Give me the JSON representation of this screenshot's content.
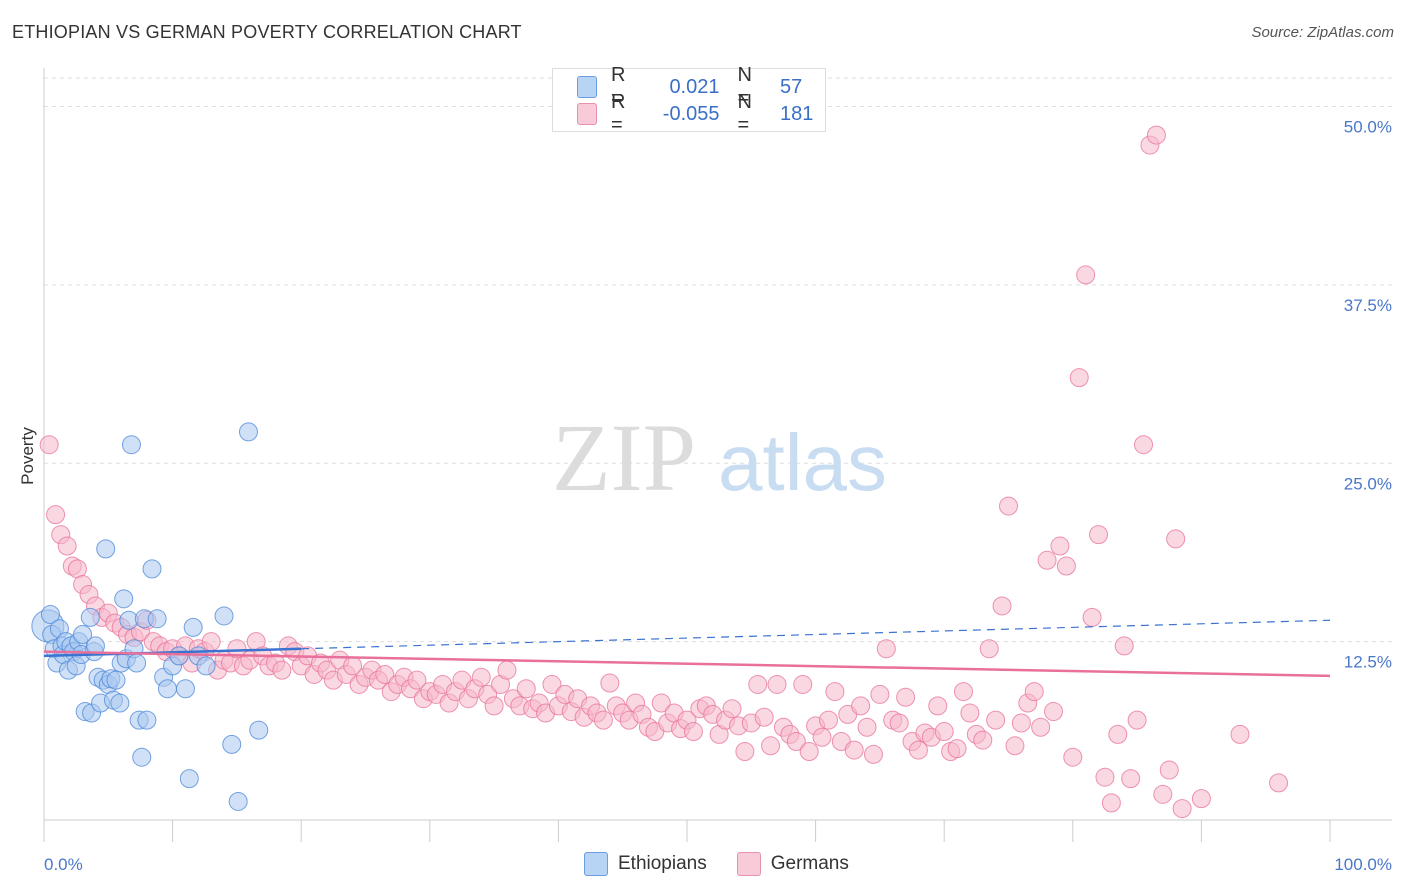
{
  "header": {
    "title": "ETHIOPIAN VS GERMAN POVERTY CORRELATION CHART",
    "source": "Source: ZipAtlas.com"
  },
  "legend": {
    "rows": [
      {
        "r_label": "R =",
        "r_value": "0.021",
        "n_label": "N =",
        "n_value": "57",
        "color": "#a9c8f0"
      },
      {
        "r_label": "R =",
        "r_value": "-0.055",
        "n_label": "N =",
        "n_value": "181",
        "color": "#f5b8cb"
      }
    ]
  },
  "bottom_legend": {
    "items": [
      {
        "label": "Ethiopians",
        "color": "#a9c8f0"
      },
      {
        "label": "Germans",
        "color": "#f5b8cb"
      }
    ]
  },
  "watermark": {
    "zip": "ZIP",
    "atlas": "atlas"
  },
  "chart_data": {
    "type": "scatter",
    "title": "ETHIOPIAN VS GERMAN POVERTY CORRELATION CHART",
    "xlabel": "",
    "ylabel": "Poverty",
    "xlim": [
      0,
      100
    ],
    "ylim": [
      0,
      52
    ],
    "x_tick_labels": [
      "0.0%",
      "100.0%"
    ],
    "y_ticks": [
      12.5,
      25.0,
      37.5,
      50.0
    ],
    "y_tick_labels": [
      "12.5%",
      "25.0%",
      "37.5%",
      "50.0%"
    ],
    "grid": true,
    "legend_position": "top-center",
    "series": [
      {
        "name": "Ethiopians",
        "color": "#4a86d8",
        "fill": "#a9c8f0",
        "trend": {
          "x": [
            0,
            100
          ],
          "y": [
            11.5,
            14.0
          ],
          "solid_until": 20
        },
        "points": [
          [
            0.3,
            13.6
          ],
          [
            0.5,
            14.4
          ],
          [
            0.6,
            13.0
          ],
          [
            0.8,
            12.0
          ],
          [
            1.0,
            11.0
          ],
          [
            1.2,
            13.4
          ],
          [
            1.4,
            12.2
          ],
          [
            1.5,
            11.6
          ],
          [
            1.7,
            12.5
          ],
          [
            1.9,
            10.5
          ],
          [
            2.1,
            12.2
          ],
          [
            2.3,
            11.8
          ],
          [
            2.5,
            10.8
          ],
          [
            2.7,
            12.5
          ],
          [
            2.9,
            11.6
          ],
          [
            3.0,
            13.0
          ],
          [
            3.2,
            7.6
          ],
          [
            3.6,
            14.2
          ],
          [
            3.7,
            7.5
          ],
          [
            3.9,
            11.8
          ],
          [
            4.0,
            12.2
          ],
          [
            4.2,
            10.0
          ],
          [
            4.4,
            8.2
          ],
          [
            4.6,
            9.8
          ],
          [
            4.8,
            19.0
          ],
          [
            5.0,
            9.5
          ],
          [
            5.2,
            9.9
          ],
          [
            5.4,
            8.4
          ],
          [
            5.6,
            9.8
          ],
          [
            5.9,
            8.2
          ],
          [
            6.0,
            11.0
          ],
          [
            6.2,
            15.5
          ],
          [
            6.4,
            11.3
          ],
          [
            6.6,
            14.0
          ],
          [
            6.8,
            26.3
          ],
          [
            7.0,
            12.0
          ],
          [
            7.2,
            11.0
          ],
          [
            7.4,
            7.0
          ],
          [
            7.6,
            4.4
          ],
          [
            7.8,
            14.1
          ],
          [
            8.0,
            7.0
          ],
          [
            8.4,
            17.6
          ],
          [
            8.8,
            14.1
          ],
          [
            9.3,
            10.0
          ],
          [
            9.6,
            9.2
          ],
          [
            10.0,
            10.8
          ],
          [
            10.5,
            11.5
          ],
          [
            11.0,
            9.2
          ],
          [
            11.3,
            2.9
          ],
          [
            11.6,
            13.5
          ],
          [
            12.0,
            11.5
          ],
          [
            12.6,
            10.8
          ],
          [
            14.0,
            14.3
          ],
          [
            14.6,
            5.3
          ],
          [
            15.1,
            1.3
          ],
          [
            15.9,
            27.2
          ],
          [
            16.7,
            6.3
          ]
        ]
      },
      {
        "name": "Germans",
        "color": "#e8709a",
        "fill": "#f5b8cb",
        "trend": {
          "x": [
            0,
            100
          ],
          "y": [
            11.8,
            10.1
          ]
        },
        "points": [
          [
            0.4,
            26.3
          ],
          [
            0.9,
            21.4
          ],
          [
            1.3,
            20.0
          ],
          [
            1.8,
            19.2
          ],
          [
            2.2,
            17.8
          ],
          [
            2.6,
            17.6
          ],
          [
            3.0,
            16.5
          ],
          [
            3.5,
            15.8
          ],
          [
            4.0,
            15.0
          ],
          [
            4.5,
            14.2
          ],
          [
            5.0,
            14.5
          ],
          [
            5.5,
            13.8
          ],
          [
            6.0,
            13.5
          ],
          [
            6.5,
            13.0
          ],
          [
            7.0,
            12.8
          ],
          [
            7.5,
            13.2
          ],
          [
            8.0,
            14.0
          ],
          [
            8.5,
            12.5
          ],
          [
            9.0,
            12.2
          ],
          [
            9.5,
            11.8
          ],
          [
            10.0,
            12.0
          ],
          [
            10.5,
            11.5
          ],
          [
            11.0,
            12.2
          ],
          [
            11.5,
            11.0
          ],
          [
            12.0,
            12.0
          ],
          [
            12.5,
            11.8
          ],
          [
            13.0,
            12.5
          ],
          [
            13.5,
            10.5
          ],
          [
            14.0,
            11.2
          ],
          [
            14.5,
            11.0
          ],
          [
            15.0,
            12.0
          ],
          [
            15.5,
            10.8
          ],
          [
            16.0,
            11.2
          ],
          [
            16.5,
            12.5
          ],
          [
            17.0,
            11.5
          ],
          [
            17.5,
            10.8
          ],
          [
            18.0,
            11.0
          ],
          [
            18.5,
            10.5
          ],
          [
            19.0,
            12.2
          ],
          [
            19.5,
            11.8
          ],
          [
            20.0,
            10.8
          ],
          [
            20.5,
            11.5
          ],
          [
            21.0,
            10.2
          ],
          [
            21.5,
            11.0
          ],
          [
            22.0,
            10.5
          ],
          [
            22.5,
            9.8
          ],
          [
            23.0,
            11.2
          ],
          [
            23.5,
            10.2
          ],
          [
            24.0,
            10.8
          ],
          [
            24.5,
            9.5
          ],
          [
            25.0,
            10.0
          ],
          [
            25.5,
            10.5
          ],
          [
            26.0,
            9.8
          ],
          [
            26.5,
            10.2
          ],
          [
            27.0,
            9.0
          ],
          [
            27.5,
            9.5
          ],
          [
            28.0,
            10.0
          ],
          [
            28.5,
            9.2
          ],
          [
            29.0,
            9.8
          ],
          [
            29.5,
            8.5
          ],
          [
            30.0,
            9.0
          ],
          [
            30.5,
            8.8
          ],
          [
            31.0,
            9.5
          ],
          [
            31.5,
            8.2
          ],
          [
            32.0,
            9.0
          ],
          [
            32.5,
            9.8
          ],
          [
            33.0,
            8.5
          ],
          [
            33.5,
            9.2
          ],
          [
            34.0,
            10.0
          ],
          [
            34.5,
            8.8
          ],
          [
            35.0,
            8.0
          ],
          [
            35.5,
            9.5
          ],
          [
            36.0,
            10.5
          ],
          [
            36.5,
            8.5
          ],
          [
            37.0,
            8.0
          ],
          [
            37.5,
            9.2
          ],
          [
            38.0,
            7.8
          ],
          [
            38.5,
            8.2
          ],
          [
            39.0,
            7.5
          ],
          [
            39.5,
            9.5
          ],
          [
            40.0,
            8.0
          ],
          [
            40.5,
            8.8
          ],
          [
            41.0,
            7.6
          ],
          [
            41.5,
            8.5
          ],
          [
            42.0,
            7.2
          ],
          [
            42.5,
            8.0
          ],
          [
            43.0,
            7.5
          ],
          [
            43.5,
            7.0
          ],
          [
            44.0,
            9.6
          ],
          [
            44.5,
            8.0
          ],
          [
            45.0,
            7.5
          ],
          [
            45.5,
            7.0
          ],
          [
            46.0,
            8.2
          ],
          [
            46.5,
            7.4
          ],
          [
            47.0,
            6.5
          ],
          [
            47.5,
            6.2
          ],
          [
            48.0,
            8.2
          ],
          [
            48.5,
            6.8
          ],
          [
            49.0,
            7.5
          ],
          [
            49.5,
            6.4
          ],
          [
            50.0,
            7.0
          ],
          [
            50.5,
            6.2
          ],
          [
            51.0,
            7.8
          ],
          [
            51.5,
            8.0
          ],
          [
            52.0,
            7.4
          ],
          [
            52.5,
            6.0
          ],
          [
            53.0,
            7.0
          ],
          [
            53.5,
            7.8
          ],
          [
            54.0,
            6.6
          ],
          [
            54.5,
            4.8
          ],
          [
            55.0,
            6.8
          ],
          [
            55.5,
            9.5
          ],
          [
            56.0,
            7.2
          ],
          [
            56.5,
            5.2
          ],
          [
            57.0,
            9.5
          ],
          [
            57.5,
            6.5
          ],
          [
            58.0,
            6.0
          ],
          [
            58.5,
            5.5
          ],
          [
            59.0,
            9.5
          ],
          [
            59.5,
            4.8
          ],
          [
            60.0,
            6.6
          ],
          [
            60.5,
            5.8
          ],
          [
            61.0,
            7.0
          ],
          [
            61.5,
            9.0
          ],
          [
            62.0,
            5.5
          ],
          [
            62.5,
            7.4
          ],
          [
            63.0,
            4.9
          ],
          [
            63.5,
            8.0
          ],
          [
            64.0,
            6.5
          ],
          [
            64.5,
            4.6
          ],
          [
            65.0,
            8.8
          ],
          [
            65.5,
            12.0
          ],
          [
            66.0,
            7.0
          ],
          [
            66.5,
            6.8
          ],
          [
            67.0,
            8.6
          ],
          [
            67.5,
            5.5
          ],
          [
            68.0,
            4.9
          ],
          [
            68.5,
            6.1
          ],
          [
            69.0,
            5.8
          ],
          [
            69.5,
            8.0
          ],
          [
            70.0,
            6.2
          ],
          [
            70.5,
            4.8
          ],
          [
            71.0,
            5.0
          ],
          [
            71.5,
            9.0
          ],
          [
            72.0,
            7.5
          ],
          [
            72.5,
            6.0
          ],
          [
            73.0,
            5.6
          ],
          [
            73.5,
            12.0
          ],
          [
            74.0,
            7.0
          ],
          [
            74.5,
            15.0
          ],
          [
            75.0,
            22.0
          ],
          [
            75.5,
            5.2
          ],
          [
            76.0,
            6.8
          ],
          [
            76.5,
            8.2
          ],
          [
            77.0,
            9.0
          ],
          [
            77.5,
            6.5
          ],
          [
            78.0,
            18.2
          ],
          [
            78.5,
            7.6
          ],
          [
            79.0,
            19.2
          ],
          [
            79.5,
            17.8
          ],
          [
            80.0,
            4.4
          ],
          [
            80.5,
            31.0
          ],
          [
            81.0,
            38.2
          ],
          [
            81.5,
            14.2
          ],
          [
            82.0,
            20.0
          ],
          [
            82.5,
            3.0
          ],
          [
            83.0,
            1.2
          ],
          [
            83.5,
            6.0
          ],
          [
            84.0,
            12.2
          ],
          [
            84.5,
            2.9
          ],
          [
            85.0,
            7.0
          ],
          [
            85.5,
            26.3
          ],
          [
            86.0,
            47.3
          ],
          [
            86.5,
            48.0
          ],
          [
            87.0,
            1.8
          ],
          [
            87.5,
            3.5
          ],
          [
            88.0,
            19.7
          ],
          [
            88.5,
            0.8
          ],
          [
            90.0,
            1.5
          ],
          [
            93.0,
            6.0
          ],
          [
            96.0,
            2.6
          ]
        ]
      }
    ]
  }
}
